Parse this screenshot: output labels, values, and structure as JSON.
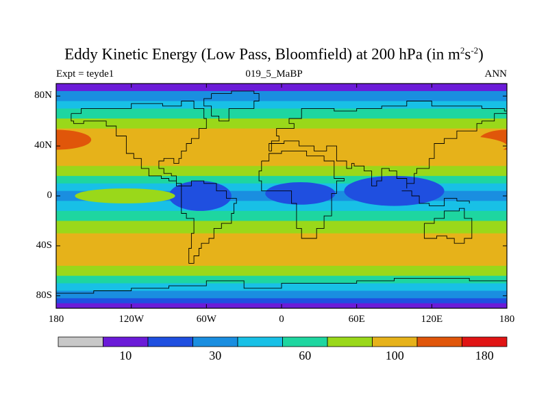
{
  "title": {
    "main": "Eddy Kinetic Energy (Low Pass, Bloomfield) at 200 hPa (in m",
    "sup1": "2",
    "mid": "s",
    "sup2": "-2",
    "end": ")"
  },
  "subtitle": {
    "left": "Expt = teyde1",
    "center": "019_5_MaBP",
    "right": "ANN"
  },
  "map": {
    "lat_labels": [
      "80N",
      "40N",
      "0",
      "40S",
      "80S"
    ],
    "lat_values": [
      80,
      40,
      0,
      -40,
      -80
    ],
    "lon_labels": [
      "180",
      "120W",
      "60W",
      "0",
      "60E",
      "120E",
      "180"
    ],
    "lon_values": [
      -180,
      -120,
      -60,
      0,
      60,
      120,
      180
    ],
    "lat_range": [
      -90,
      90
    ],
    "lon_range": [
      -180,
      180
    ],
    "variable": "Eddy Kinetic Energy",
    "units": "m2 s-2",
    "level": "200 hPa",
    "bands": [
      {
        "lat_min": 84,
        "lat_max": 90,
        "level": 1
      },
      {
        "lat_min": 76,
        "lat_max": 84,
        "level": 3
      },
      {
        "lat_min": 70,
        "lat_max": 76,
        "level": 4
      },
      {
        "lat_min": 62,
        "lat_max": 70,
        "level": 5
      },
      {
        "lat_min": 54,
        "lat_max": 62,
        "level": 6
      },
      {
        "lat_min": 24,
        "lat_max": 54,
        "level": 7
      },
      {
        "lat_min": 16,
        "lat_max": 24,
        "level": 6
      },
      {
        "lat_min": 10,
        "lat_max": 16,
        "level": 5
      },
      {
        "lat_min": 4,
        "lat_max": 10,
        "level": 4
      },
      {
        "lat_min": -4,
        "lat_max": 4,
        "level": 3
      },
      {
        "lat_min": -12,
        "lat_max": -4,
        "level": 4
      },
      {
        "lat_min": -20,
        "lat_max": -12,
        "level": 5
      },
      {
        "lat_min": -30,
        "lat_max": -20,
        "level": 6
      },
      {
        "lat_min": -56,
        "lat_max": -30,
        "level": 7
      },
      {
        "lat_min": -64,
        "lat_max": -56,
        "level": 6
      },
      {
        "lat_min": -70,
        "lat_max": -64,
        "level": 5
      },
      {
        "lat_min": -76,
        "lat_max": -70,
        "level": 4
      },
      {
        "lat_min": -82,
        "lat_max": -76,
        "level": 3
      },
      {
        "lat_min": -86,
        "lat_max": -82,
        "level": 2
      },
      {
        "lat_min": -90,
        "lat_max": -86,
        "level": 1
      }
    ],
    "features": [
      {
        "name": "north-pacific-max",
        "lon": -180,
        "lat": 45,
        "rlon": 28,
        "rlat": 8,
        "level": 8
      },
      {
        "name": "north-pacific-max-east",
        "lon": 180,
        "lat": 45,
        "rlon": 22,
        "rlat": 8,
        "level": 8
      },
      {
        "name": "north-atlantic-jet",
        "lon": -40,
        "lat": 42,
        "rlon": 55,
        "rlat": 12,
        "level": 7
      },
      {
        "name": "asian-jet",
        "lon": 110,
        "lat": 40,
        "rlon": 70,
        "rlat": 10,
        "level": 7
      },
      {
        "name": "south-america-min",
        "lon": -65,
        "lat": 0,
        "rlon": 25,
        "rlat": 12,
        "level": 2
      },
      {
        "name": "africa-min",
        "lon": 15,
        "lat": 2,
        "rlon": 28,
        "rlat": 9,
        "level": 2
      },
      {
        "name": "indian-ocean-min",
        "lon": 90,
        "lat": 4,
        "rlon": 40,
        "rlat": 12,
        "level": 2
      },
      {
        "name": "east-pacific-tongue",
        "lon": -125,
        "lat": 0,
        "rlon": 40,
        "rlat": 6,
        "level": 6
      },
      {
        "name": "south-pacific-jet",
        "lon": -150,
        "lat": -42,
        "rlon": 40,
        "rlat": 8,
        "level": 7
      }
    ]
  },
  "colorbar": {
    "colors": [
      "#c8c8c8",
      "#6b1bd8",
      "#1f4fe0",
      "#1a8ee0",
      "#18c0e6",
      "#1ed6a0",
      "#9ad81a",
      "#e6b21a",
      "#e0560a",
      "#e01414"
    ],
    "labels": [
      "10",
      "30",
      "60",
      "100",
      "180"
    ],
    "label_boundaries": [
      1,
      3,
      5,
      7,
      9
    ]
  }
}
